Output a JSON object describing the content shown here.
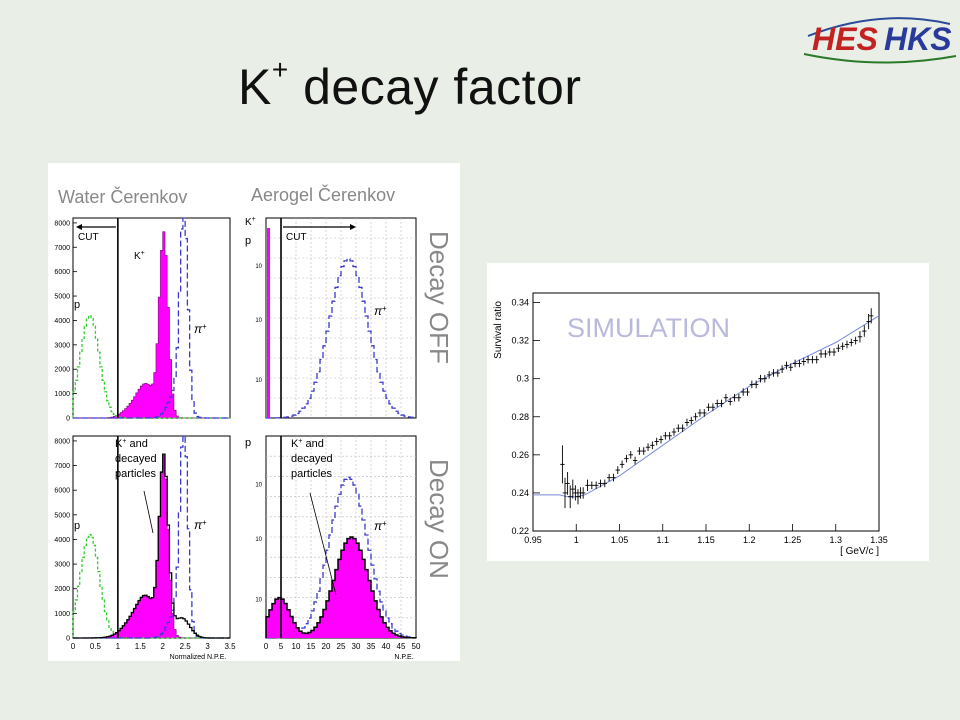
{
  "slide": {
    "title_main": "K",
    "title_sup": "+",
    "title_rest": " decay factor"
  },
  "logo": {
    "text_1": "HES",
    "text_2": "HKS"
  },
  "left_figure": {
    "col_titles": [
      "Water Čerenkov",
      "Aerogel Čerenkov"
    ],
    "row_labels": [
      "Decay OFF",
      "Decay ON"
    ],
    "cut_label": "CUT",
    "water_x_title": "Normalized N.P.E.",
    "aerogel_x_title": "N.P.E.",
    "water_x_ticks": [
      "0",
      "0.5",
      "1",
      "1.5",
      "2",
      "2.5",
      "3",
      "3.5"
    ],
    "aerogel_x_ticks": [
      "0",
      "5",
      "10",
      "15",
      "20",
      "25",
      "30",
      "35",
      "40",
      "45",
      "50"
    ],
    "water_y_ticks": [
      "0",
      "1000",
      "2000",
      "3000",
      "4000",
      "5000",
      "6000",
      "7000",
      "8000"
    ],
    "aerogel_y_ticks": [
      "10",
      "10",
      "10"
    ],
    "aerogel_y_exps": [
      "2",
      "3",
      "4"
    ],
    "labels": {
      "p": "p",
      "kplus": "K",
      "kplus_sup": "+",
      "pi": "π",
      "pi_sup": "+",
      "kdecay_lines": [
        "K",
        "+",
        " and",
        "decayed",
        "particles"
      ]
    },
    "colors": {
      "kaon": "#ff00ff",
      "pion": "#3a3ad0",
      "proton": "#33cc33",
      "total": "#000000"
    }
  },
  "chart_data": {
    "type": "scatter",
    "title": "",
    "watermark": "SIMULATION",
    "xlabel": "[ GeV/c ]",
    "ylabel": "Survival ratio",
    "xlim": [
      0.95,
      1.35
    ],
    "ylim": [
      0.22,
      0.345
    ],
    "x_ticks": [
      "0.95",
      "1",
      "1.05",
      "1.1",
      "1.15",
      "1.2",
      "1.25",
      "1.3",
      "1.35"
    ],
    "y_ticks": [
      "0.22",
      "0.24",
      "0.26",
      "0.28",
      "0.3",
      "0.32",
      "0.34"
    ],
    "grid": false,
    "series": [
      {
        "x": [
          0.984,
          0.987,
          0.99,
          0.993,
          0.996,
          0.999,
          1.002,
          1.005,
          1.008,
          1.013,
          1.018,
          1.023,
          1.028,
          1.033,
          1.038,
          1.043,
          1.048,
          1.053,
          1.058,
          1.063,
          1.068,
          1.073,
          1.078,
          1.083,
          1.088,
          1.093,
          1.098,
          1.103,
          1.108,
          1.113,
          1.118,
          1.123,
          1.128,
          1.133,
          1.138,
          1.143,
          1.148,
          1.153,
          1.158,
          1.163,
          1.168,
          1.173,
          1.178,
          1.183,
          1.188,
          1.193,
          1.198,
          1.203,
          1.208,
          1.213,
          1.218,
          1.223,
          1.228,
          1.233,
          1.238,
          1.243,
          1.248,
          1.253,
          1.258,
          1.263,
          1.268,
          1.273,
          1.278,
          1.283,
          1.288,
          1.293,
          1.298,
          1.303,
          1.308,
          1.313,
          1.318,
          1.323,
          1.328,
          1.333,
          1.338,
          1.341
        ],
        "y": [
          0.255,
          0.24,
          0.245,
          0.238,
          0.242,
          0.24,
          0.238,
          0.24,
          0.24,
          0.244,
          0.244,
          0.244,
          0.245,
          0.245,
          0.248,
          0.248,
          0.252,
          0.255,
          0.258,
          0.26,
          0.257,
          0.262,
          0.262,
          0.264,
          0.265,
          0.267,
          0.268,
          0.27,
          0.27,
          0.272,
          0.274,
          0.274,
          0.277,
          0.278,
          0.28,
          0.282,
          0.282,
          0.285,
          0.285,
          0.287,
          0.287,
          0.29,
          0.288,
          0.29,
          0.29,
          0.293,
          0.293,
          0.297,
          0.297,
          0.3,
          0.3,
          0.302,
          0.303,
          0.303,
          0.305,
          0.307,
          0.306,
          0.308,
          0.308,
          0.309,
          0.31,
          0.31,
          0.31,
          0.313,
          0.313,
          0.314,
          0.314,
          0.316,
          0.317,
          0.318,
          0.319,
          0.32,
          0.322,
          0.325,
          0.33,
          0.333
        ],
        "err": [
          0.01,
          0.008,
          0.006,
          0.006,
          0.005,
          0.004,
          0.004,
          0.003,
          0.003,
          0.003,
          0.002,
          0.002,
          0.002,
          0.002,
          0.002,
          0.002,
          0.002,
          0.002,
          0.002,
          0.002,
          0.002,
          0.002,
          0.002,
          0.002,
          0.002,
          0.002,
          0.002,
          0.002,
          0.002,
          0.002,
          0.002,
          0.002,
          0.002,
          0.002,
          0.002,
          0.002,
          0.002,
          0.002,
          0.002,
          0.002,
          0.002,
          0.002,
          0.002,
          0.002,
          0.002,
          0.002,
          0.002,
          0.002,
          0.002,
          0.002,
          0.002,
          0.002,
          0.002,
          0.002,
          0.002,
          0.002,
          0.002,
          0.002,
          0.002,
          0.002,
          0.002,
          0.002,
          0.002,
          0.002,
          0.002,
          0.002,
          0.002,
          0.002,
          0.002,
          0.002,
          0.002,
          0.002,
          0.003,
          0.003,
          0.004,
          0.004
        ]
      }
    ],
    "fit_curve": {
      "x": [
        0.95,
        0.98,
        0.99,
        1.0,
        1.01,
        1.05,
        1.1,
        1.15,
        1.2,
        1.25,
        1.3,
        1.35
      ],
      "y": [
        0.239,
        0.239,
        0.238,
        0.238,
        0.239,
        0.249,
        0.265,
        0.281,
        0.296,
        0.308,
        0.319,
        0.333
      ]
    }
  }
}
